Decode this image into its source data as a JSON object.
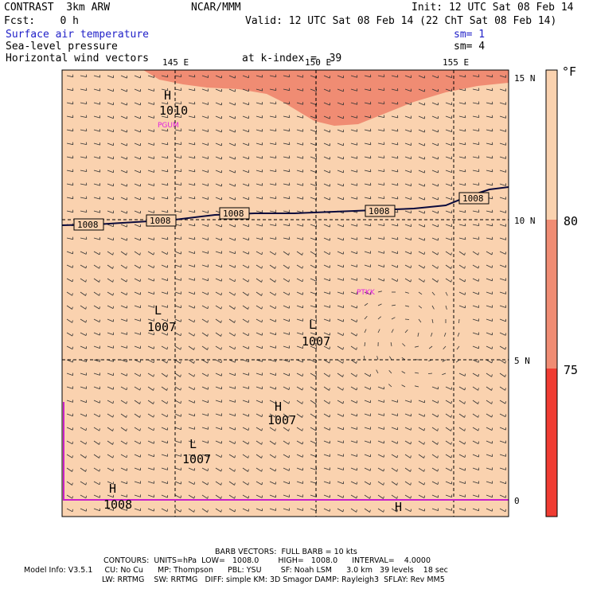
{
  "header": {
    "left1": "CONTRAST  3km ARW",
    "center": "NCAR/MMM",
    "init": "Init: 12 UTC Sat 08 Feb 14",
    "fcst": "Fcst:    0 h",
    "valid": "Valid: 12 UTC Sat 08 Feb 14 (22 ChT Sat 08 Feb 14)",
    "field1": "Surface air temperature",
    "field2": "Sea-level pressure",
    "field3": "Horizontal wind vectors",
    "sm1": "sm= 1",
    "sm2": "sm= 4",
    "kindex": "at k-index =  39"
  },
  "map": {
    "lon_labels": [
      "145 E",
      "150 E",
      "155 E"
    ],
    "lat_labels": [
      "15 N",
      "10 N",
      "5 N",
      "0"
    ],
    "isobar_label": "1008",
    "pressure_centers": [
      {
        "type": "H",
        "value": "1010"
      },
      {
        "type": "L",
        "value": "1007"
      },
      {
        "type": "L",
        "value": "1007"
      },
      {
        "type": "H",
        "value": "1007"
      },
      {
        "type": "L",
        "value": "1007"
      },
      {
        "type": "H",
        "value": "1008"
      },
      {
        "type": "H",
        "value": ""
      }
    ],
    "stations": [
      "PGUM",
      "PTKK"
    ],
    "colors": {
      "temp_below_75": "#f03c32",
      "temp_75_80": "#f08c73",
      "temp_above_80": "#fad2af",
      "isobar": "#0a0a3c",
      "station": "#e020e0",
      "boundary": "#c820c8"
    }
  },
  "legend": {
    "unit": "°F",
    "levels": [
      "80",
      "75"
    ]
  },
  "footer": {
    "line1": "BARB VECTORS:  FULL BARB = 10 kts",
    "line2": "CONTOURS:  UNITS=hPa  LOW=   1008.0        HIGH=   1008.0      INTERVAL=    4.0000",
    "line3": "Model Info: V3.5.1     CU: No Cu      MP: Thompson      PBL: YSU        SF: Noah LSM      3.0 km   39 levels    18 sec",
    "line4": "LW: RRTMG    SW: RRTMG   DIFF: simple KM: 3D Smagor DAMP: Rayleigh3  SFLAY: Rev MM5"
  }
}
